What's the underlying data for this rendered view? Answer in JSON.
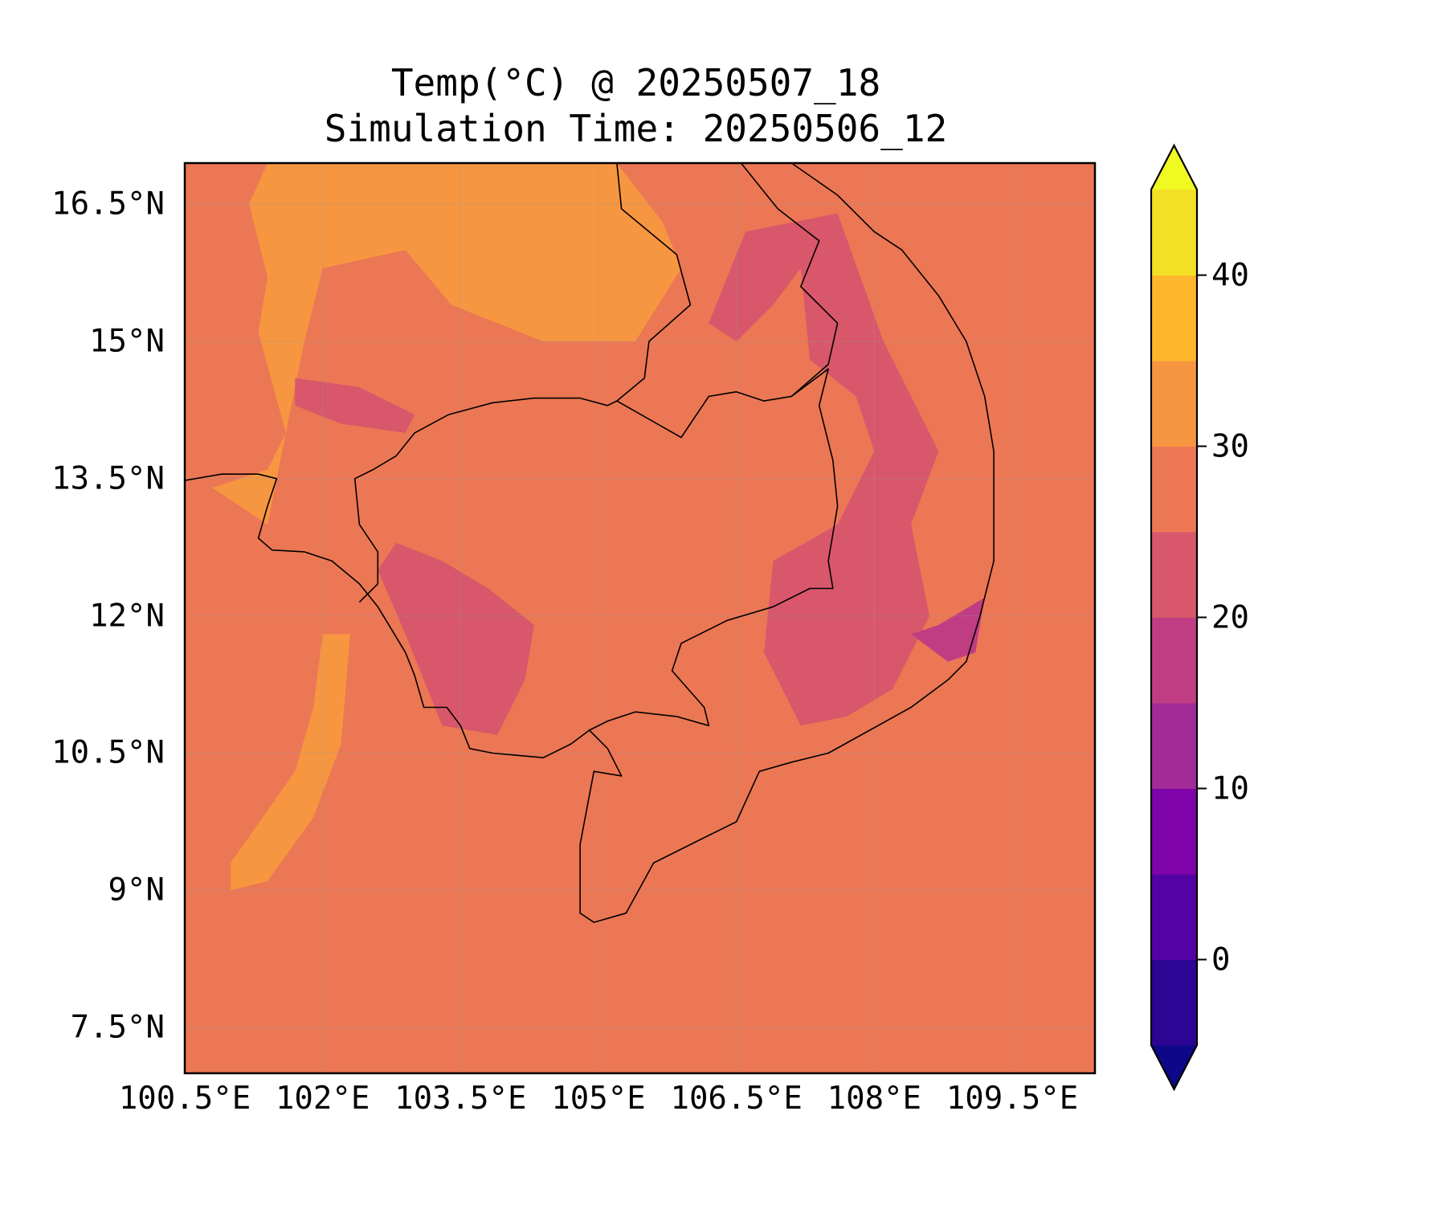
{
  "chart_data": {
    "type": "heatmap",
    "title": "Temp(°C) @ 20250507_18",
    "subtitle": "Simulation Time: 20250506_12",
    "variable": "Temp(°C)",
    "x_ticks": [
      {
        "value": 100.5,
        "label": "100.5°E"
      },
      {
        "value": 102.0,
        "label": "102°E"
      },
      {
        "value": 103.5,
        "label": "103.5°E"
      },
      {
        "value": 105.0,
        "label": "105°E"
      },
      {
        "value": 106.5,
        "label": "106.5°E"
      },
      {
        "value": 108.0,
        "label": "108°E"
      },
      {
        "value": 109.5,
        "label": "109.5°E"
      }
    ],
    "y_ticks": [
      {
        "value": 16.5,
        "label": "16.5°N"
      },
      {
        "value": 15.0,
        "label": "15°N"
      },
      {
        "value": 13.5,
        "label": "13.5°N"
      },
      {
        "value": 12.0,
        "label": "12°N"
      },
      {
        "value": 10.5,
        "label": "10.5°N"
      },
      {
        "value": 9.0,
        "label": "9°N"
      },
      {
        "value": 7.5,
        "label": "7.5°N"
      }
    ],
    "xlim": [
      100.5,
      110.4
    ],
    "ylim": [
      7.0,
      16.95
    ],
    "grid": true,
    "colorbar": {
      "cmap": "plasma",
      "extend": "both",
      "levels": [
        -5,
        0,
        5,
        10,
        15,
        20,
        25,
        30,
        35,
        40,
        45
      ],
      "colors": [
        "#0d0887",
        "#2c0594",
        "#5502a4",
        "#7e03a8",
        "#a22b97",
        "#c13d83",
        "#d8576b",
        "#ec7754",
        "#f79641",
        "#feb72c",
        "#f3e025",
        "#f0f921"
      ],
      "ticks": [
        {
          "value": 0,
          "label": "0"
        },
        {
          "value": 10,
          "label": "10"
        },
        {
          "value": 20,
          "label": "20"
        },
        {
          "value": 30,
          "label": "30"
        },
        {
          "value": 40,
          "label": "40"
        }
      ]
    },
    "background_value_band": [
      25,
      30
    ],
    "regions": [
      {
        "band": [
          30,
          35
        ],
        "description": "warm band NE Thailand / Laos lowlands",
        "polygon": [
          [
            101.4,
            16.95
          ],
          [
            101.2,
            16.5
          ],
          [
            101.4,
            15.7
          ],
          [
            101.3,
            15.1
          ],
          [
            101.6,
            14.0
          ],
          [
            101.4,
            13.6
          ],
          [
            100.8,
            13.4
          ],
          [
            101.4,
            13.0
          ],
          [
            101.8,
            15.0
          ],
          [
            102.0,
            15.8
          ],
          [
            102.9,
            16.0
          ],
          [
            103.4,
            15.4
          ],
          [
            104.4,
            15.0
          ],
          [
            105.4,
            15.0
          ],
          [
            105.9,
            15.8
          ],
          [
            105.7,
            16.3
          ],
          [
            105.2,
            16.95
          ]
        ]
      },
      {
        "band": [
          30,
          35
        ],
        "description": "warm streak Gulf of Thailand",
        "polygon": [
          [
            102.0,
            11.8
          ],
          [
            102.3,
            11.8
          ],
          [
            102.2,
            10.6
          ],
          [
            101.9,
            9.8
          ],
          [
            101.4,
            9.1
          ],
          [
            101.0,
            9.0
          ],
          [
            101.0,
            9.3
          ],
          [
            101.7,
            10.3
          ],
          [
            101.9,
            11.0
          ]
        ]
      },
      {
        "band": [
          20,
          25
        ],
        "description": "cool band Annamite highlands",
        "polygon": [
          [
            106.6,
            16.2
          ],
          [
            107.6,
            16.4
          ],
          [
            108.1,
            15.0
          ],
          [
            108.7,
            13.8
          ],
          [
            108.4,
            13.0
          ],
          [
            108.6,
            12.0
          ],
          [
            108.2,
            11.2
          ],
          [
            107.7,
            10.9
          ],
          [
            107.2,
            10.8
          ],
          [
            106.8,
            11.6
          ],
          [
            106.9,
            12.6
          ],
          [
            107.6,
            13.0
          ],
          [
            108.0,
            13.8
          ],
          [
            107.8,
            14.4
          ],
          [
            107.3,
            14.8
          ],
          [
            107.2,
            15.8
          ],
          [
            106.9,
            15.4
          ],
          [
            106.5,
            15.0
          ],
          [
            106.2,
            15.2
          ]
        ]
      },
      {
        "band": [
          20,
          25
        ],
        "description": "cool band Cardamom mountains",
        "polygon": [
          [
            102.8,
            12.8
          ],
          [
            103.3,
            12.6
          ],
          [
            103.8,
            12.3
          ],
          [
            104.3,
            11.9
          ],
          [
            104.2,
            11.3
          ],
          [
            103.9,
            10.7
          ],
          [
            103.3,
            10.8
          ],
          [
            102.9,
            11.8
          ],
          [
            102.6,
            12.5
          ]
        ]
      },
      {
        "band": [
          20,
          25
        ],
        "description": "cool patch Thai plateau",
        "polygon": [
          [
            101.7,
            14.6
          ],
          [
            102.4,
            14.5
          ],
          [
            103.0,
            14.2
          ],
          [
            102.9,
            14.0
          ],
          [
            102.2,
            14.1
          ],
          [
            101.7,
            14.3
          ]
        ]
      },
      {
        "band": [
          15,
          20
        ],
        "description": "coldest patch southern highlands",
        "polygon": [
          [
            108.7,
            11.9
          ],
          [
            109.2,
            12.2
          ],
          [
            109.1,
            11.6
          ],
          [
            108.8,
            11.5
          ],
          [
            108.4,
            11.8
          ]
        ]
      }
    ]
  }
}
